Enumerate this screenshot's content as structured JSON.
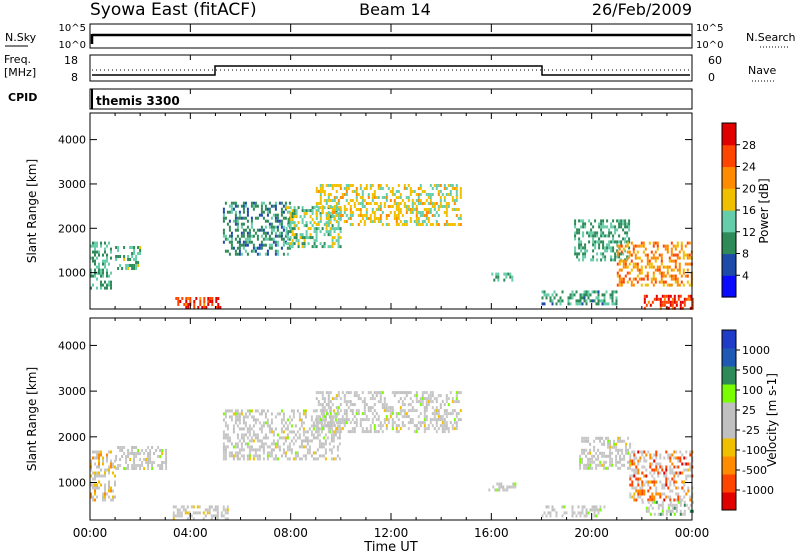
{
  "header": {
    "station": "Syowa East (fitACF)",
    "beam": "Beam 14",
    "date": "26/Feb/2009"
  },
  "panels": {
    "nsky_label": "N.Sky",
    "nsky_ticks": [
      "10^5",
      "10^0"
    ],
    "nsearch_label": "N.Search",
    "nsearch_ticks": [
      "10^5",
      "10^0"
    ],
    "freq_label_1": "Freq.",
    "freq_label_2": "[MHz]",
    "freq_ticks": [
      "18",
      "8"
    ],
    "nave_label": "Nave",
    "nave_ticks": [
      "60",
      "0"
    ],
    "cpid_label": "CPID",
    "cpid_value": "themis 3300"
  },
  "colors": {
    "power": [
      "#0a0aff",
      "#1e4aa8",
      "#2e8b57",
      "#66cdaa",
      "#f0c000",
      "#ff8c00",
      "#ff4500",
      "#e00000"
    ],
    "velocity": [
      "#e00000",
      "#ff4500",
      "#ff8c00",
      "#f0c000",
      "#c0c0c0",
      "#c0c0c0",
      "#7cfc00",
      "#2e8b57",
      "#1e5ab4",
      "#1e3cc8"
    ],
    "gray": "#c8c8c8"
  },
  "chart_data": [
    {
      "type": "heatmap",
      "title": "Power",
      "xlabel": "Time UT",
      "ylabel": "Slant Range [km]",
      "xlim": [
        0,
        24
      ],
      "ylim": [
        180,
        4600
      ],
      "x_ticks": [
        "00:00",
        "04:00",
        "08:00",
        "12:00",
        "16:00",
        "20:00",
        "00:00"
      ],
      "y_ticks": [
        "1000",
        "2000",
        "3000",
        "4000"
      ],
      "colorbar_label": "Power [dB]",
      "colorbar_ticks": [
        "4",
        "8",
        "12",
        "16",
        "20",
        "24",
        "28"
      ],
      "colorbar_range": [
        0,
        32
      ],
      "regions": [
        {
          "t": [
            0.0,
            0.8
          ],
          "r": [
            600,
            1700
          ],
          "v": 12
        },
        {
          "t": [
            1.0,
            2.0
          ],
          "r": [
            1100,
            1600
          ],
          "v": 13
        },
        {
          "t": [
            3.4,
            5.2
          ],
          "r": [
            220,
            450
          ],
          "v": 27
        },
        {
          "t": [
            5.3,
            8.0
          ],
          "r": [
            1400,
            2600
          ],
          "v": 10
        },
        {
          "t": [
            7.8,
            10.0
          ],
          "r": [
            1600,
            2500
          ],
          "v": 14
        },
        {
          "t": [
            9.0,
            14.8
          ],
          "r": [
            2100,
            3000
          ],
          "v": 17
        },
        {
          "t": [
            16.0,
            16.8
          ],
          "r": [
            850,
            1000
          ],
          "v": 12
        },
        {
          "t": [
            18.0,
            21.0
          ],
          "r": [
            300,
            600
          ],
          "v": 11
        },
        {
          "t": [
            19.3,
            21.5
          ],
          "r": [
            1300,
            2200
          ],
          "v": 12
        },
        {
          "t": [
            21.0,
            24.0
          ],
          "r": [
            700,
            1700
          ],
          "v": 22
        },
        {
          "t": [
            22.0,
            24.0
          ],
          "r": [
            220,
            500
          ],
          "v": 27
        }
      ]
    },
    {
      "type": "heatmap",
      "title": "Velocity",
      "xlabel": "Time UT",
      "ylabel": "Slant Range [km]",
      "xlim": [
        0,
        24
      ],
      "ylim": [
        180,
        4600
      ],
      "x_ticks": [
        "00:00",
        "04:00",
        "08:00",
        "12:00",
        "16:00",
        "20:00",
        "00:00"
      ],
      "y_ticks": [
        "1000",
        "2000",
        "3000",
        "4000"
      ],
      "colorbar_label": "Velocity [m s-1]",
      "colorbar_ticks": [
        "1000",
        "500",
        "100",
        "25",
        "-25",
        "-100",
        "-500",
        "-1000"
      ],
      "colorbar_range": [
        -1000,
        1000
      ],
      "regions": [
        {
          "t": [
            0.0,
            1.0
          ],
          "r": [
            600,
            1700
          ],
          "v": -300
        },
        {
          "t": [
            1.0,
            3.0
          ],
          "r": [
            1300,
            1800
          ],
          "v": 0
        },
        {
          "t": [
            3.3,
            5.5
          ],
          "r": [
            200,
            500
          ],
          "v": -150
        },
        {
          "t": [
            5.3,
            10.0
          ],
          "r": [
            1500,
            2600
          ],
          "v": 0
        },
        {
          "t": [
            9.0,
            14.8
          ],
          "r": [
            2100,
            3000
          ],
          "v": 0
        },
        {
          "t": [
            15.8,
            17.0
          ],
          "r": [
            850,
            1000
          ],
          "v": 200
        },
        {
          "t": [
            18.0,
            20.5
          ],
          "r": [
            300,
            500
          ],
          "v": 150
        },
        {
          "t": [
            19.5,
            21.5
          ],
          "r": [
            1300,
            2000
          ],
          "v": 0
        },
        {
          "t": [
            21.5,
            24.0
          ],
          "r": [
            600,
            1700
          ],
          "v": -600
        },
        {
          "t": [
            22.0,
            24.0
          ],
          "r": [
            300,
            600
          ],
          "v": 300
        }
      ]
    }
  ]
}
